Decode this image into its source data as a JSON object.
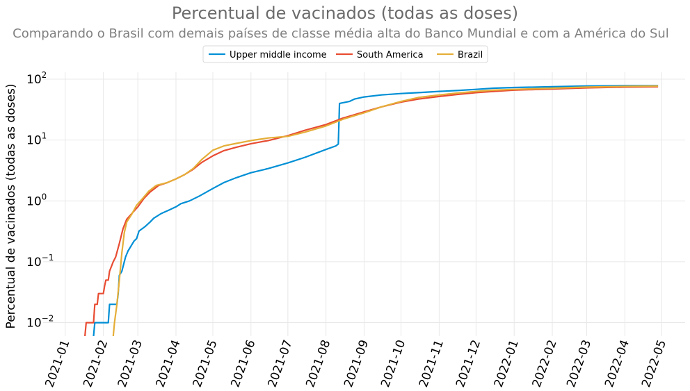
{
  "chart_data": {
    "type": "line",
    "title": "Percentual de vacinados (todas as doses)",
    "subtitle": "Comparando o Brasil com demais países de classe média alta do Banco Mundial e com a América do Sul",
    "ylabel": "Percentual de vacinados (todas as doses)",
    "yscale": "log",
    "ylim": [
      0.006,
      130
    ],
    "xlim": [
      "2020-12-14",
      "2022-05-20"
    ],
    "grid": true,
    "legend_position": "top-center",
    "x_ticks": [
      "2021-01",
      "2021-02",
      "2021-03",
      "2021-04",
      "2021-05",
      "2021-06",
      "2021-07",
      "2021-08",
      "2021-09",
      "2021-10",
      "2021-11",
      "2021-12",
      "2022-01",
      "2022-02",
      "2022-03",
      "2022-04",
      "2022-05"
    ],
    "y_ticks": [
      {
        "value": 0.01,
        "base": "10",
        "exp": "−2"
      },
      {
        "value": 0.1,
        "base": "10",
        "exp": "−1"
      },
      {
        "value": 1,
        "base": "10",
        "exp": "0"
      },
      {
        "value": 10,
        "base": "10",
        "exp": "1"
      },
      {
        "value": 100,
        "base": "10",
        "exp": "2"
      }
    ],
    "series": [
      {
        "name": "Upper middle income",
        "color": "#008fd5",
        "points": [
          [
            "2021-01-24",
            0.006
          ],
          [
            "2021-01-25",
            0.01
          ],
          [
            "2021-02-05",
            0.01
          ],
          [
            "2021-02-06",
            0.02
          ],
          [
            "2021-02-12",
            0.02
          ],
          [
            "2021-02-13",
            0.03
          ],
          [
            "2021-02-14",
            0.06
          ],
          [
            "2021-02-16",
            0.07
          ],
          [
            "2021-02-19",
            0.12
          ],
          [
            "2021-02-21",
            0.15
          ],
          [
            "2021-02-26",
            0.22
          ],
          [
            "2021-02-28",
            0.24
          ],
          [
            "2021-03-02",
            0.32
          ],
          [
            "2021-03-07",
            0.38
          ],
          [
            "2021-03-11",
            0.45
          ],
          [
            "2021-03-14",
            0.52
          ],
          [
            "2021-03-20",
            0.62
          ],
          [
            "2021-03-26",
            0.7
          ],
          [
            "2021-04-01",
            0.8
          ],
          [
            "2021-04-05",
            0.9
          ],
          [
            "2021-04-12",
            1.0
          ],
          [
            "2021-04-20",
            1.2
          ],
          [
            "2021-05-01",
            1.6
          ],
          [
            "2021-05-10",
            2.0
          ],
          [
            "2021-05-20",
            2.4
          ],
          [
            "2021-06-01",
            2.9
          ],
          [
            "2021-06-15",
            3.4
          ],
          [
            "2021-07-01",
            4.2
          ],
          [
            "2021-07-15",
            5.2
          ],
          [
            "2021-08-01",
            7.0
          ],
          [
            "2021-08-09",
            8.0
          ],
          [
            "2021-08-11",
            8.6
          ],
          [
            "2021-08-12",
            40
          ],
          [
            "2021-08-20",
            43
          ],
          [
            "2021-08-24",
            47
          ],
          [
            "2021-09-01",
            51
          ],
          [
            "2021-09-15",
            55
          ],
          [
            "2021-10-01",
            58
          ],
          [
            "2021-10-15",
            60
          ],
          [
            "2021-11-01",
            63
          ],
          [
            "2021-11-15",
            65
          ],
          [
            "2021-12-01",
            68
          ],
          [
            "2021-12-15",
            71
          ],
          [
            "2022-01-01",
            73
          ],
          [
            "2022-02-01",
            75
          ],
          [
            "2022-03-01",
            77
          ],
          [
            "2022-04-01",
            78
          ],
          [
            "2022-04-28",
            78
          ]
        ]
      },
      {
        "name": "South America",
        "color": "#e84c32",
        "points": [
          [
            "2021-01-17",
            0.006
          ],
          [
            "2021-01-18",
            0.01
          ],
          [
            "2021-01-24",
            0.01
          ],
          [
            "2021-01-25",
            0.02
          ],
          [
            "2021-01-27",
            0.02
          ],
          [
            "2021-01-28",
            0.03
          ],
          [
            "2021-02-01",
            0.03
          ],
          [
            "2021-02-02",
            0.04
          ],
          [
            "2021-02-03",
            0.05
          ],
          [
            "2021-02-05",
            0.05
          ],
          [
            "2021-02-06",
            0.07
          ],
          [
            "2021-02-09",
            0.1
          ],
          [
            "2021-02-11",
            0.12
          ],
          [
            "2021-02-14",
            0.2
          ],
          [
            "2021-02-17",
            0.35
          ],
          [
            "2021-02-20",
            0.5
          ],
          [
            "2021-02-25",
            0.65
          ],
          [
            "2021-03-01",
            0.8
          ],
          [
            "2021-03-06",
            1.1
          ],
          [
            "2021-03-11",
            1.4
          ],
          [
            "2021-03-18",
            1.8
          ],
          [
            "2021-03-25",
            2.0
          ],
          [
            "2021-04-01",
            2.3
          ],
          [
            "2021-04-08",
            2.7
          ],
          [
            "2021-04-15",
            3.3
          ],
          [
            "2021-04-22",
            4.3
          ],
          [
            "2021-05-01",
            5.5
          ],
          [
            "2021-05-10",
            6.7
          ],
          [
            "2021-05-20",
            7.6
          ],
          [
            "2021-06-01",
            8.7
          ],
          [
            "2021-06-15",
            9.8
          ],
          [
            "2021-07-01",
            11.8
          ],
          [
            "2021-07-15",
            14.5
          ],
          [
            "2021-08-01",
            18
          ],
          [
            "2021-08-15",
            23
          ],
          [
            "2021-09-01",
            29
          ],
          [
            "2021-09-15",
            35
          ],
          [
            "2021-10-01",
            42
          ],
          [
            "2021-10-15",
            47
          ],
          [
            "2021-11-01",
            52
          ],
          [
            "2021-11-15",
            56
          ],
          [
            "2021-12-01",
            60
          ],
          [
            "2021-12-15",
            63
          ],
          [
            "2022-01-01",
            66
          ],
          [
            "2022-02-01",
            69
          ],
          [
            "2022-03-01",
            72
          ],
          [
            "2022-04-01",
            74
          ],
          [
            "2022-04-28",
            75
          ]
        ]
      },
      {
        "name": "Brazil",
        "color": "#e5ae38",
        "points": [
          [
            "2021-02-09",
            0.006
          ],
          [
            "2021-02-10",
            0.01
          ],
          [
            "2021-02-12",
            0.02
          ],
          [
            "2021-02-14",
            0.05
          ],
          [
            "2021-02-16",
            0.14
          ],
          [
            "2021-02-18",
            0.3
          ],
          [
            "2021-02-20",
            0.45
          ],
          [
            "2021-02-24",
            0.6
          ],
          [
            "2021-02-28",
            0.85
          ],
          [
            "2021-03-05",
            1.1
          ],
          [
            "2021-03-10",
            1.45
          ],
          [
            "2021-03-16",
            1.8
          ],
          [
            "2021-03-25",
            2.0
          ],
          [
            "2021-04-01",
            2.3
          ],
          [
            "2021-04-08",
            2.7
          ],
          [
            "2021-04-15",
            3.4
          ],
          [
            "2021-04-22",
            4.8
          ],
          [
            "2021-05-01",
            6.8
          ],
          [
            "2021-05-10",
            8.0
          ],
          [
            "2021-05-20",
            8.8
          ],
          [
            "2021-06-01",
            9.8
          ],
          [
            "2021-06-15",
            10.8
          ],
          [
            "2021-07-01",
            11.5
          ],
          [
            "2021-07-15",
            13.5
          ],
          [
            "2021-08-01",
            17
          ],
          [
            "2021-08-15",
            22
          ],
          [
            "2021-09-01",
            28
          ],
          [
            "2021-09-15",
            35
          ],
          [
            "2021-10-01",
            43
          ],
          [
            "2021-10-15",
            50
          ],
          [
            "2021-11-01",
            55
          ],
          [
            "2021-11-15",
            59
          ],
          [
            "2021-12-01",
            63
          ],
          [
            "2021-12-15",
            66
          ],
          [
            "2022-01-01",
            68
          ],
          [
            "2022-02-01",
            71
          ],
          [
            "2022-03-01",
            74
          ],
          [
            "2022-04-01",
            76
          ],
          [
            "2022-04-28",
            77
          ]
        ]
      }
    ]
  }
}
